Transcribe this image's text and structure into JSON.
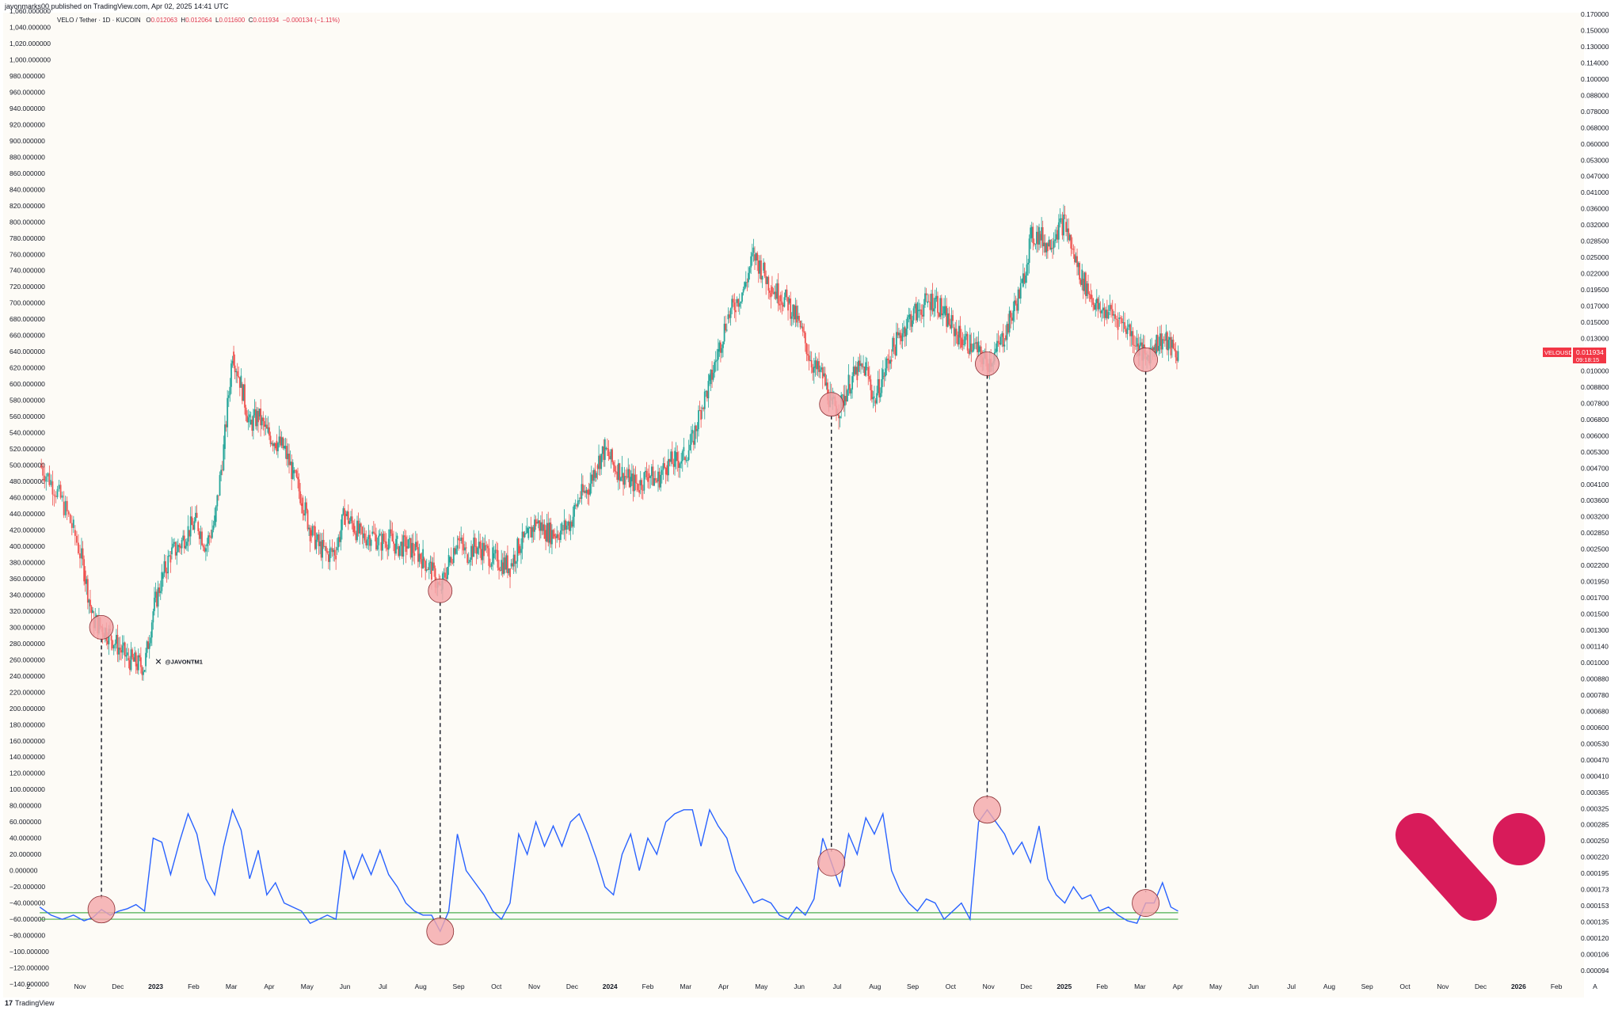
{
  "header": {
    "published": "javonmarks00 published on TradingView.com, Apr 02, 2025 14:41 UTC"
  },
  "symbol": {
    "name": "VELO / Tether · 1D · KUCOIN",
    "o_label": "O",
    "o": "0.012063",
    "h_label": "H",
    "h": "0.012064",
    "l_label": "L",
    "l": "0.011600",
    "c_label": "C",
    "c": "0.011934",
    "change": "−0.000134 (−1.11%)"
  },
  "price_tag": {
    "symbol": "VELOUSDT",
    "price": "0.011934",
    "countdown": "09:18:15"
  },
  "watermark": "@JAVONTM1",
  "footer": {
    "brand": "TradingView"
  },
  "colors": {
    "up": "#26a69a",
    "down": "#ef5350",
    "oscillator": "#2962ff",
    "band": "#4caf50",
    "circle_fill": "#f4a7aa",
    "logo": "#d81b5a",
    "background": "#fdfbf6"
  },
  "chart_data": {
    "type": "candlestick",
    "left_axis": {
      "ticks": [
        "1,060.000000",
        "1,040.000000",
        "1,020.000000",
        "1,000.000000",
        "980.000000",
        "960.000000",
        "940.000000",
        "920.000000",
        "900.000000",
        "880.000000",
        "860.000000",
        "840.000000",
        "820.000000",
        "800.000000",
        "780.000000",
        "760.000000",
        "740.000000",
        "720.000000",
        "700.000000",
        "680.000000",
        "660.000000",
        "640.000000",
        "620.000000",
        "600.000000",
        "580.000000",
        "560.000000",
        "540.000000",
        "520.000000",
        "500.000000",
        "480.000000",
        "460.000000",
        "440.000000",
        "420.000000",
        "400.000000",
        "380.000000",
        "360.000000",
        "340.000000",
        "320.000000",
        "300.000000",
        "280.000000",
        "260.000000",
        "240.000000",
        "220.000000",
        "200.000000",
        "180.000000",
        "160.000000",
        "140.000000",
        "120.000000",
        "100.000000",
        "80.000000",
        "60.000000",
        "40.000000",
        "20.000000",
        "0.000000",
        "−20.000000",
        "−40.000000",
        "−60.000000",
        "−80.000000",
        "−100.000000",
        "−120.000000",
        "−140.000000"
      ],
      "range": [
        -140,
        1060
      ]
    },
    "right_axis": {
      "ticks": [
        "0.170000",
        "0.150000",
        "0.130000",
        "0.114000",
        "0.100000",
        "0.088000",
        "0.078000",
        "0.068000",
        "0.060000",
        "0.053000",
        "0.047000",
        "0.041000",
        "0.036000",
        "0.032000",
        "0.028500",
        "0.025000",
        "0.022000",
        "0.019500",
        "0.017000",
        "0.015000",
        "0.013000",
        "0.011934",
        "0.010000",
        "0.008800",
        "0.007800",
        "0.006800",
        "0.006000",
        "0.005300",
        "0.004700",
        "0.004100",
        "0.003600",
        "0.003200",
        "0.002850",
        "0.002500",
        "0.002200",
        "0.001950",
        "0.001700",
        "0.001500",
        "0.001300",
        "0.001140",
        "0.001000",
        "0.000880",
        "0.000780",
        "0.000680",
        "0.000600",
        "0.000530",
        "0.000470",
        "0.000410",
        "0.000365",
        "0.000325",
        "0.000285",
        "0.000250",
        "0.000220",
        "0.000195",
        "0.000173",
        "0.000153",
        "0.000135",
        "0.000120",
        "0.000106",
        "0.000094"
      ],
      "scale": "log"
    },
    "x_labels": [
      "Z",
      "Nov",
      "Dec",
      "2023",
      "Feb",
      "Mar",
      "Apr",
      "May",
      "Jun",
      "Jul",
      "Aug",
      "Sep",
      "Oct",
      "Nov",
      "Dec",
      "2024",
      "Feb",
      "Mar",
      "Apr",
      "May",
      "Jun",
      "Jul",
      "Aug",
      "Sep",
      "Oct",
      "Nov",
      "Dec",
      "2025",
      "Feb",
      "Mar",
      "Apr",
      "May",
      "Jun",
      "Jul",
      "Aug",
      "Sep",
      "Oct",
      "Nov",
      "Dec",
      "2026",
      "Feb",
      "A"
    ],
    "bold_x_labels": [
      "2023",
      "2024",
      "2025",
      "2026"
    ],
    "price_path": [
      [
        "2022-10-06",
        500
      ],
      [
        "2022-10-13",
        480
      ],
      [
        "2022-10-20",
        455
      ],
      [
        "2022-10-27",
        420
      ],
      [
        "2022-11-03",
        370
      ],
      [
        "2022-11-10",
        310
      ],
      [
        "2022-11-17",
        300
      ],
      [
        "2022-11-24",
        290
      ],
      [
        "2022-12-01",
        275
      ],
      [
        "2022-12-08",
        262
      ],
      [
        "2022-12-15",
        255
      ],
      [
        "2022-12-22",
        252
      ],
      [
        "2022-12-29",
        320
      ],
      [
        "2023-01-05",
        360
      ],
      [
        "2023-01-12",
        390
      ],
      [
        "2023-01-19",
        400
      ],
      [
        "2023-01-26",
        420
      ],
      [
        "2023-02-02",
        430
      ],
      [
        "2023-02-09",
        400
      ],
      [
        "2023-02-16",
        430
      ],
      [
        "2023-02-23",
        520
      ],
      [
        "2023-03-02",
        640
      ],
      [
        "2023-03-09",
        600
      ],
      [
        "2023-03-16",
        550
      ],
      [
        "2023-03-23",
        560
      ],
      [
        "2023-03-30",
        540
      ],
      [
        "2023-04-06",
        530
      ],
      [
        "2023-04-13",
        520
      ],
      [
        "2023-04-20",
        490
      ],
      [
        "2023-04-27",
        460
      ],
      [
        "2023-05-04",
        420
      ],
      [
        "2023-05-11",
        400
      ],
      [
        "2023-05-18",
        390
      ],
      [
        "2023-05-25",
        395
      ],
      [
        "2023-06-01",
        440
      ],
      [
        "2023-06-08",
        425
      ],
      [
        "2023-06-15",
        410
      ],
      [
        "2023-06-22",
        415
      ],
      [
        "2023-06-29",
        405
      ],
      [
        "2023-07-06",
        410
      ],
      [
        "2023-07-13",
        400
      ],
      [
        "2023-07-20",
        400
      ],
      [
        "2023-07-27",
        395
      ],
      [
        "2023-08-03",
        385
      ],
      [
        "2023-08-10",
        370
      ],
      [
        "2023-08-17",
        345
      ],
      [
        "2023-08-24",
        380
      ],
      [
        "2023-08-31",
        410
      ],
      [
        "2023-09-07",
        390
      ],
      [
        "2023-09-14",
        400
      ],
      [
        "2023-09-21",
        395
      ],
      [
        "2023-09-28",
        385
      ],
      [
        "2023-10-05",
        380
      ],
      [
        "2023-10-12",
        375
      ],
      [
        "2023-10-19",
        400
      ],
      [
        "2023-10-26",
        410
      ],
      [
        "2023-11-02",
        430
      ],
      [
        "2023-11-09",
        420
      ],
      [
        "2023-11-16",
        415
      ],
      [
        "2023-11-23",
        420
      ],
      [
        "2023-11-30",
        430
      ],
      [
        "2023-12-07",
        460
      ],
      [
        "2023-12-14",
        470
      ],
      [
        "2023-12-21",
        500
      ],
      [
        "2023-12-28",
        520
      ],
      [
        "2024-01-04",
        500
      ],
      [
        "2024-01-11",
        490
      ],
      [
        "2024-01-18",
        480
      ],
      [
        "2024-01-25",
        475
      ],
      [
        "2024-02-01",
        490
      ],
      [
        "2024-02-08",
        480
      ],
      [
        "2024-02-15",
        500
      ],
      [
        "2024-02-22",
        505
      ],
      [
        "2024-02-29",
        510
      ],
      [
        "2024-03-07",
        530
      ],
      [
        "2024-03-14",
        570
      ],
      [
        "2024-03-21",
        600
      ],
      [
        "2024-03-28",
        640
      ],
      [
        "2024-04-04",
        680
      ],
      [
        "2024-04-11",
        700
      ],
      [
        "2024-04-18",
        720
      ],
      [
        "2024-04-25",
        760
      ],
      [
        "2024-05-02",
        740
      ],
      [
        "2024-05-09",
        720
      ],
      [
        "2024-05-16",
        710
      ],
      [
        "2024-05-23",
        700
      ],
      [
        "2024-05-30",
        680
      ],
      [
        "2024-06-06",
        650
      ],
      [
        "2024-06-13",
        620
      ],
      [
        "2024-06-20",
        610
      ],
      [
        "2024-06-27",
        575
      ],
      [
        "2024-07-04",
        570
      ],
      [
        "2024-07-11",
        600
      ],
      [
        "2024-07-18",
        615
      ],
      [
        "2024-07-25",
        620
      ],
      [
        "2024-08-01",
        580
      ],
      [
        "2024-08-08",
        610
      ],
      [
        "2024-08-15",
        640
      ],
      [
        "2024-08-22",
        660
      ],
      [
        "2024-08-29",
        680
      ],
      [
        "2024-09-05",
        690
      ],
      [
        "2024-09-12",
        700
      ],
      [
        "2024-09-19",
        705
      ],
      [
        "2024-09-26",
        685
      ],
      [
        "2024-10-03",
        670
      ],
      [
        "2024-10-10",
        655
      ],
      [
        "2024-10-17",
        650
      ],
      [
        "2024-10-24",
        640
      ],
      [
        "2024-10-31",
        625
      ],
      [
        "2024-11-07",
        640
      ],
      [
        "2024-11-14",
        660
      ],
      [
        "2024-11-21",
        690
      ],
      [
        "2024-11-28",
        720
      ],
      [
        "2024-12-05",
        780
      ],
      [
        "2024-12-12",
        785
      ],
      [
        "2024-12-19",
        770
      ],
      [
        "2024-12-26",
        790
      ],
      [
        "2025-01-02",
        800
      ],
      [
        "2025-01-09",
        760
      ],
      [
        "2025-01-16",
        730
      ],
      [
        "2025-01-23",
        710
      ],
      [
        "2025-01-30",
        690
      ],
      [
        "2025-02-06",
        690
      ],
      [
        "2025-02-13",
        680
      ],
      [
        "2025-02-20",
        670
      ],
      [
        "2025-02-27",
        650
      ],
      [
        "2025-03-06",
        630
      ],
      [
        "2025-03-13",
        650
      ],
      [
        "2025-03-20",
        655
      ],
      [
        "2025-03-27",
        645
      ],
      [
        "2025-04-02",
        635
      ]
    ],
    "oscillator": {
      "name": "",
      "values": [
        [
          "2022-10-06",
          -45
        ],
        [
          "2022-10-13",
          -55
        ],
        [
          "2022-10-20",
          -60
        ],
        [
          "2022-10-27",
          -55
        ],
        [
          "2022-11-03",
          -62
        ],
        [
          "2022-11-10",
          -58
        ],
        [
          "2022-11-17",
          -48
        ],
        [
          "2022-11-24",
          -55
        ],
        [
          "2022-12-01",
          -50
        ],
        [
          "2022-12-08",
          -47
        ],
        [
          "2022-12-15",
          -42
        ],
        [
          "2022-12-22",
          -50
        ],
        [
          "2022-12-29",
          40
        ],
        [
          "2023-01-05",
          35
        ],
        [
          "2023-01-12",
          -5
        ],
        [
          "2023-01-19",
          35
        ],
        [
          "2023-01-26",
          70
        ],
        [
          "2023-02-02",
          45
        ],
        [
          "2023-02-09",
          -10
        ],
        [
          "2023-02-16",
          -30
        ],
        [
          "2023-02-23",
          30
        ],
        [
          "2023-03-02",
          75
        ],
        [
          "2023-03-09",
          50
        ],
        [
          "2023-03-16",
          -10
        ],
        [
          "2023-03-23",
          25
        ],
        [
          "2023-03-30",
          -30
        ],
        [
          "2023-04-06",
          -15
        ],
        [
          "2023-04-13",
          -40
        ],
        [
          "2023-04-20",
          -45
        ],
        [
          "2023-04-27",
          -50
        ],
        [
          "2023-05-04",
          -65
        ],
        [
          "2023-05-11",
          -60
        ],
        [
          "2023-05-18",
          -55
        ],
        [
          "2023-05-25",
          -60
        ],
        [
          "2023-06-01",
          25
        ],
        [
          "2023-06-08",
          -10
        ],
        [
          "2023-06-15",
          20
        ],
        [
          "2023-06-22",
          -5
        ],
        [
          "2023-06-29",
          25
        ],
        [
          "2023-07-06",
          -5
        ],
        [
          "2023-07-13",
          -20
        ],
        [
          "2023-07-20",
          -40
        ],
        [
          "2023-07-27",
          -50
        ],
        [
          "2023-08-03",
          -55
        ],
        [
          "2023-08-10",
          -55
        ],
        [
          "2023-08-17",
          -75
        ],
        [
          "2023-08-24",
          -50
        ],
        [
          "2023-08-31",
          45
        ],
        [
          "2023-09-07",
          0
        ],
        [
          "2023-09-14",
          -15
        ],
        [
          "2023-09-21",
          -30
        ],
        [
          "2023-09-28",
          -50
        ],
        [
          "2023-10-05",
          -60
        ],
        [
          "2023-10-12",
          -40
        ],
        [
          "2023-10-19",
          45
        ],
        [
          "2023-10-26",
          20
        ],
        [
          "2023-11-02",
          60
        ],
        [
          "2023-11-09",
          30
        ],
        [
          "2023-11-16",
          55
        ],
        [
          "2023-11-23",
          30
        ],
        [
          "2023-11-30",
          60
        ],
        [
          "2023-12-07",
          70
        ],
        [
          "2023-12-14",
          45
        ],
        [
          "2023-12-21",
          15
        ],
        [
          "2023-12-28",
          -20
        ],
        [
          "2024-01-04",
          -30
        ],
        [
          "2024-01-11",
          20
        ],
        [
          "2024-01-18",
          45
        ],
        [
          "2024-01-25",
          0
        ],
        [
          "2024-02-01",
          40
        ],
        [
          "2024-02-08",
          20
        ],
        [
          "2024-02-15",
          60
        ],
        [
          "2024-02-22",
          70
        ],
        [
          "2024-02-29",
          75
        ],
        [
          "2024-03-07",
          75
        ],
        [
          "2024-03-14",
          30
        ],
        [
          "2024-03-21",
          75
        ],
        [
          "2024-03-28",
          55
        ],
        [
          "2024-04-04",
          40
        ],
        [
          "2024-04-11",
          0
        ],
        [
          "2024-04-18",
          -20
        ],
        [
          "2024-04-25",
          -40
        ],
        [
          "2024-05-02",
          -35
        ],
        [
          "2024-05-09",
          -40
        ],
        [
          "2024-05-16",
          -55
        ],
        [
          "2024-05-23",
          -60
        ],
        [
          "2024-05-30",
          -45
        ],
        [
          "2024-06-06",
          -55
        ],
        [
          "2024-06-13",
          -35
        ],
        [
          "2024-06-20",
          40
        ],
        [
          "2024-06-27",
          10
        ],
        [
          "2024-07-04",
          -20
        ],
        [
          "2024-07-11",
          45
        ],
        [
          "2024-07-18",
          20
        ],
        [
          "2024-07-25",
          65
        ],
        [
          "2024-08-01",
          45
        ],
        [
          "2024-08-08",
          70
        ],
        [
          "2024-08-15",
          0
        ],
        [
          "2024-08-22",
          -25
        ],
        [
          "2024-08-29",
          -40
        ],
        [
          "2024-09-05",
          -50
        ],
        [
          "2024-09-12",
          -35
        ],
        [
          "2024-09-19",
          -40
        ],
        [
          "2024-09-26",
          -60
        ],
        [
          "2024-10-03",
          -50
        ],
        [
          "2024-10-10",
          -40
        ],
        [
          "2024-10-17",
          -60
        ],
        [
          "2024-10-24",
          60
        ],
        [
          "2024-10-31",
          75
        ],
        [
          "2024-11-07",
          60
        ],
        [
          "2024-11-14",
          45
        ],
        [
          "2024-11-21",
          20
        ],
        [
          "2024-11-28",
          35
        ],
        [
          "2024-12-05",
          10
        ],
        [
          "2024-12-12",
          55
        ],
        [
          "2024-12-19",
          -10
        ],
        [
          "2024-12-26",
          -30
        ],
        [
          "2025-01-02",
          -40
        ],
        [
          "2025-01-09",
          -20
        ],
        [
          "2025-01-16",
          -35
        ],
        [
          "2025-01-23",
          -30
        ],
        [
          "2025-01-30",
          -50
        ],
        [
          "2025-02-06",
          -45
        ],
        [
          "2025-02-13",
          -55
        ],
        [
          "2025-02-20",
          -62
        ],
        [
          "2025-02-27",
          -65
        ],
        [
          "2025-03-06",
          -40
        ],
        [
          "2025-03-13",
          -40
        ],
        [
          "2025-03-20",
          -15
        ],
        [
          "2025-03-27",
          -45
        ],
        [
          "2025-04-02",
          -50
        ]
      ]
    },
    "bands": [
      -52,
      -60
    ],
    "highlighted_bottoms": [
      "2022-11-17",
      "2023-08-17",
      "2024-06-27",
      "2024-10-31",
      "2025-03-06"
    ]
  }
}
